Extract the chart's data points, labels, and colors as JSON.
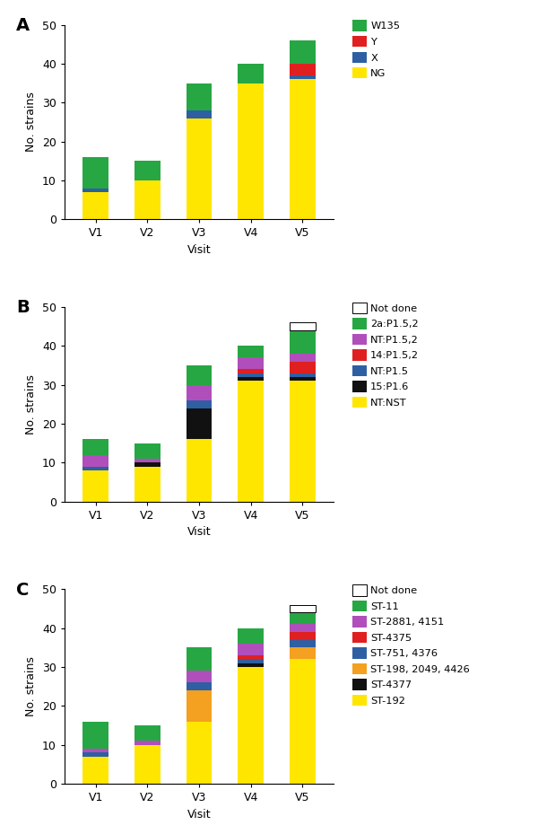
{
  "visits": [
    "V1",
    "V2",
    "V3",
    "V4",
    "V5"
  ],
  "panel_A": {
    "label": "A",
    "ylabel": "No. strains",
    "xlabel": "Visit",
    "ylim": [
      0,
      50
    ],
    "yticks": [
      0,
      10,
      20,
      30,
      40,
      50
    ],
    "series": {
      "NG": [
        7,
        10,
        26,
        35,
        36
      ],
      "X": [
        1,
        0,
        2,
        0,
        1
      ],
      "Y": [
        0,
        0,
        0,
        0,
        3
      ],
      "W135": [
        8,
        5,
        7,
        5,
        6
      ]
    },
    "colors": {
      "NG": "#FFE600",
      "X": "#2E5FA3",
      "Y": "#E02020",
      "W135": "#27A744"
    },
    "legend_order": [
      "W135",
      "Y",
      "X",
      "NG"
    ]
  },
  "panel_B": {
    "label": "B",
    "ylabel": "No. strains",
    "xlabel": "Visit",
    "ylim": [
      0,
      50
    ],
    "yticks": [
      0,
      10,
      20,
      30,
      40,
      50
    ],
    "series": {
      "NT:NST": [
        8,
        9,
        16,
        31,
        31
      ],
      "15:P1.6": [
        0,
        1,
        8,
        1,
        1
      ],
      "NT:P1.5": [
        1,
        0,
        2,
        1,
        1
      ],
      "14:P1.5,2": [
        0,
        0,
        0,
        1,
        3
      ],
      "NT:P1.5,2": [
        3,
        1,
        4,
        3,
        2
      ],
      "2a:P1.5,2": [
        4,
        4,
        5,
        3,
        6
      ],
      "Not done": [
        0,
        0,
        0,
        0,
        2
      ]
    },
    "colors": {
      "NT:NST": "#FFE600",
      "15:P1.6": "#111111",
      "NT:P1.5": "#2E5FA3",
      "14:P1.5,2": "#E02020",
      "NT:P1.5,2": "#B04FBB",
      "2a:P1.5,2": "#27A744",
      "Not done": "#FFFFFF"
    },
    "legend_order": [
      "Not done",
      "2a:P1.5,2",
      "NT:P1.5,2",
      "14:P1.5,2",
      "NT:P1.5",
      "15:P1.6",
      "NT:NST"
    ]
  },
  "panel_C": {
    "label": "C",
    "ylabel": "No. strains",
    "xlabel": "Visit",
    "ylim": [
      0,
      50
    ],
    "yticks": [
      0,
      10,
      20,
      30,
      40,
      50
    ],
    "series": {
      "ST-192": [
        7,
        10,
        16,
        30,
        32
      ],
      "ST-4377": [
        0,
        0,
        0,
        1,
        0
      ],
      "ST-198, 2049, 4426": [
        0,
        0,
        8,
        0,
        3
      ],
      "ST-751, 4376": [
        1,
        0,
        2,
        1,
        2
      ],
      "ST-4375": [
        0,
        0,
        0,
        1,
        2
      ],
      "ST-2881, 4151": [
        1,
        1,
        3,
        3,
        2
      ],
      "ST-11": [
        7,
        4,
        6,
        4,
        3
      ],
      "Not done": [
        0,
        0,
        0,
        0,
        2
      ]
    },
    "colors": {
      "ST-192": "#FFE600",
      "ST-4377": "#111111",
      "ST-198, 2049, 4426": "#F4A020",
      "ST-751, 4376": "#2E5FA3",
      "ST-4375": "#E02020",
      "ST-2881, 4151": "#B04FBB",
      "ST-11": "#27A744",
      "Not done": "#FFFFFF"
    },
    "legend_order": [
      "Not done",
      "ST-11",
      "ST-2881, 4151",
      "ST-4375",
      "ST-751, 4376",
      "ST-198, 2049, 4426",
      "ST-4377",
      "ST-192"
    ]
  }
}
